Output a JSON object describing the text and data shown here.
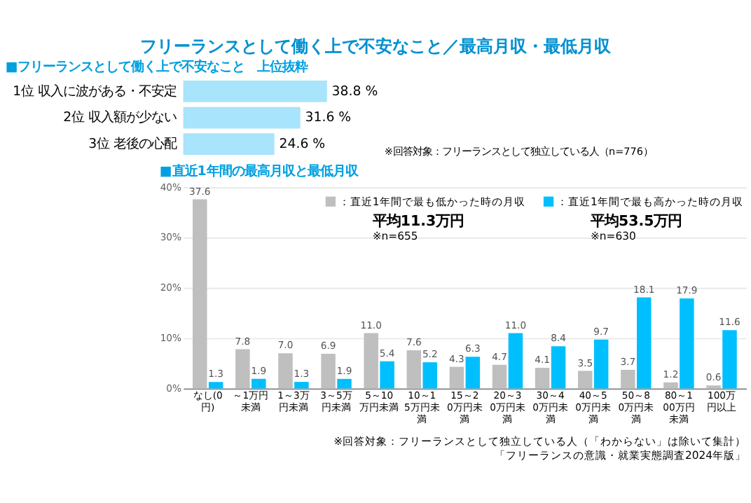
{
  "chart_data": [
    {
      "type": "bar",
      "orientation": "horizontal",
      "title": "フリーランスとして働く上で不安なこと／最高月収・最低月収",
      "subtitle": "■フリーランスとして働く上で不安なこと　上位抜粋",
      "categories": [
        "1位 収入に波がある・不安定",
        "2位 収入額が少ない",
        "3位 老後の心配"
      ],
      "values": [
        38.8,
        31.6,
        24.6
      ],
      "color": "#a8e4fb",
      "value_labels": [
        "38.8 %",
        "31.6 %",
        "24.6 %"
      ],
      "tick_labels": "y",
      "grid": false,
      "annotations": [
        "※回答対象：フリーランスとして独立している人（n=776）"
      ]
    },
    {
      "type": "bar",
      "title": "■直近1年間の最高月収と最低月収",
      "categories": [
        "なし(0円)",
        "～1万円未満",
        "1～3万円未満",
        "3～5万円未満",
        "5～10万円未満",
        "10～15万円未満",
        "15～20万円未満",
        "20～30万円未満",
        "30～40万円未満",
        "40～50万円未満",
        "50～80万円未満",
        "80～100万円未満",
        "100万円以上"
      ],
      "series": [
        {
          "name": "：直近1年間で最も低かった時の月収",
          "color": "#bfbfbf",
          "values": [
            37.6,
            7.8,
            7.0,
            6.9,
            11.0,
            7.6,
            4.3,
            4.7,
            4.1,
            3.5,
            3.7,
            1.2,
            0.6
          ],
          "value_labels": [
            "37.6",
            "7.8",
            "7.0",
            "6.9",
            "11.0",
            "7.6",
            "4.3",
            "4.7",
            "4.1",
            "3.5",
            "3.7",
            "1.2",
            "0.6"
          ]
        },
        {
          "name": "：直近1年間で最も高かった時の月収",
          "color": "#00bfff",
          "values": [
            1.3,
            1.9,
            1.3,
            1.9,
            5.4,
            5.2,
            6.3,
            11.0,
            8.4,
            9.7,
            18.1,
            17.9,
            11.6
          ],
          "value_labels": [
            "1.3",
            "1.9",
            "1.3",
            "1.9",
            "5.4",
            "5.2",
            "6.3",
            "11.0",
            "8.4",
            "9.7",
            "18.1",
            "17.9",
            "11.6"
          ]
        }
      ],
      "ylim": [
        0,
        40
      ],
      "yticks": [
        {
          "value": 0,
          "label": "0%"
        },
        {
          "value": 10,
          "label": "10%"
        },
        {
          "value": 20,
          "label": "20%"
        },
        {
          "value": 30,
          "label": "30%"
        },
        {
          "value": 40,
          "label": "40%"
        }
      ],
      "grid": "y",
      "legend": "top",
      "annotations": [
        "平均11.3万円",
        "※n=655",
        "平均53.5万円",
        "※n=630",
        "※回答対象：フリーランスとして独立している人（「わからない」は除いて集計）",
        "「フリーランスの意識・就業実態調査2024年版」"
      ]
    }
  ]
}
